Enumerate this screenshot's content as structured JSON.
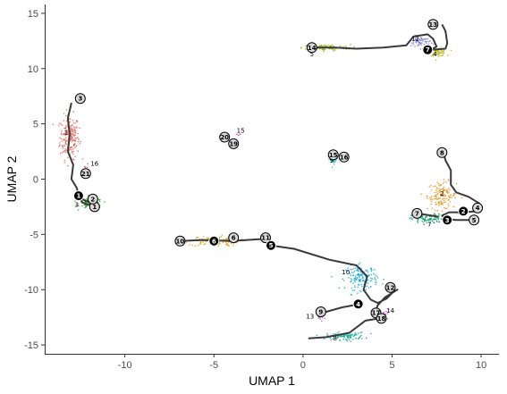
{
  "chart_data": {
    "type": "scatter",
    "xlabel": "UMAP 1",
    "ylabel": "UMAP 2",
    "xlim": [
      -14.5,
      11
    ],
    "ylim": [
      -15.8,
      15.8
    ],
    "x_ticks": [
      -10,
      -5,
      0,
      5,
      10
    ],
    "y_ticks": [
      -15,
      -10,
      -5,
      0,
      5,
      10,
      15
    ],
    "grid": false,
    "legend": "none",
    "clusters": [
      {
        "label": "1",
        "x": -13.1,
        "y": 3.8,
        "color": "#e06a5f",
        "spread": [
          0.6,
          2.2
        ],
        "n": 220
      },
      {
        "label": "2",
        "x": 7.8,
        "y": -1.5,
        "color": "#e68f1a",
        "spread": [
          0.9,
          1.4
        ],
        "n": 140
      },
      {
        "label": "3",
        "x": -11.9,
        "y": -2.2,
        "color": "#2eab2e",
        "spread": [
          0.7,
          0.5
        ],
        "n": 120
      },
      {
        "label": "4",
        "x": 7.6,
        "y": 11.5,
        "color": "#b8b814",
        "spread": [
          0.5,
          0.4
        ],
        "n": 70
      },
      {
        "label": "5",
        "x": 1.3,
        "y": 11.9,
        "color": "#8fb01a",
        "spread": [
          1.5,
          0.3
        ],
        "n": 110
      },
      {
        "label": "6",
        "x": -5.0,
        "y": -5.6,
        "color": "#d6a61f",
        "spread": [
          1.6,
          0.5
        ],
        "n": 130
      },
      {
        "label": "7",
        "x": 7.0,
        "y": -3.6,
        "color": "#1aa36f",
        "spread": [
          1.0,
          0.5
        ],
        "n": 100
      },
      {
        "label": "8",
        "x": 2.4,
        "y": -14.2,
        "color": "#18a89a",
        "spread": [
          1.2,
          0.4
        ],
        "n": 100
      },
      {
        "label": "9",
        "x": 1.7,
        "y": 1.8,
        "color": "#1fb3b3",
        "spread": [
          0.3,
          0.5
        ],
        "n": 30
      },
      {
        "label": "10",
        "x": 3.3,
        "y": -8.9,
        "color": "#1fa8d6",
        "spread": [
          1.0,
          1.2
        ],
        "n": 160
      },
      {
        "label": "12",
        "x": 6.6,
        "y": 12.4,
        "color": "#7a7ad6",
        "spread": [
          0.6,
          0.6
        ],
        "n": 60
      },
      {
        "label": "13",
        "x": 1.0,
        "y": -12.4,
        "color": "#a970db",
        "spread": [
          0.3,
          0.4
        ],
        "n": 25
      },
      {
        "label": "14",
        "x": 4.6,
        "y": -12.2,
        "color": "#d65ad1",
        "spread": [
          0.3,
          0.4
        ],
        "n": 20
      },
      {
        "label": "15",
        "x": -3.6,
        "y": 4.0,
        "color": "#e05aa0",
        "spread": [
          0.2,
          0.2
        ],
        "n": 6
      },
      {
        "label": "16",
        "x": -12.2,
        "y": 1.0,
        "color": "#e0574f",
        "spread": [
          0.3,
          0.3
        ],
        "n": 8
      }
    ],
    "cluster_label_positions": [
      {
        "label": "1",
        "x": -13.3,
        "y": 4.0
      },
      {
        "label": "2",
        "x": 7.8,
        "y": -1.5
      },
      {
        "label": "3",
        "x": -12.7,
        "y": -2.5
      },
      {
        "label": "4",
        "x": 7.4,
        "y": 11.1
      },
      {
        "label": "5",
        "x": 0.5,
        "y": 11.1
      },
      {
        "label": "6",
        "x": -5.0,
        "y": -6.1
      },
      {
        "label": "7",
        "x": 7.1,
        "y": -4.3
      },
      {
        "label": "8",
        "x": 1.8,
        "y": -14.6
      },
      {
        "label": "9",
        "x": 1.6,
        "y": 1.5
      },
      {
        "label": "10",
        "x": 2.4,
        "y": -8.6
      },
      {
        "label": "12",
        "x": 6.3,
        "y": 12.5
      },
      {
        "label": "13",
        "x": 0.4,
        "y": -12.6
      },
      {
        "label": "14",
        "x": 4.9,
        "y": -12.1
      },
      {
        "label": "15",
        "x": -3.5,
        "y": 4.2
      },
      {
        "label": "16",
        "x": -11.7,
        "y": 1.2
      }
    ],
    "trajectory_paths": [
      [
        [
          -13.0,
          6.9
        ],
        [
          -13.2,
          5.5
        ],
        [
          -13.1,
          4.0
        ],
        [
          -13.2,
          2.5
        ],
        [
          -12.9,
          1.3
        ],
        [
          -13.0,
          0.0
        ],
        [
          -12.7,
          -0.8
        ],
        [
          -12.6,
          -1.5
        ],
        [
          -12.4,
          -2.1
        ],
        [
          -12.1,
          -2.3
        ],
        [
          -11.7,
          -2.4
        ],
        [
          -11.4,
          -2.6
        ]
      ],
      [
        [
          -12.6,
          -1.5
        ],
        [
          -12.2,
          -2.0
        ],
        [
          -11.8,
          -2.0
        ]
      ],
      [
        [
          -6.9,
          -5.6
        ],
        [
          -5.6,
          -5.5
        ],
        [
          -4.0,
          -5.6
        ],
        [
          -2.1,
          -5.4
        ],
        [
          -1.8,
          -6.0
        ],
        [
          -0.5,
          -6.3
        ],
        [
          1.5,
          -7.3
        ],
        [
          3.0,
          -7.8
        ],
        [
          3.6,
          -8.8
        ],
        [
          3.4,
          -10.0
        ],
        [
          3.8,
          -10.9
        ],
        [
          4.2,
          -11.2
        ],
        [
          4.7,
          -10.8
        ],
        [
          5.0,
          -10.3
        ],
        [
          5.3,
          -10.0
        ],
        [
          4.6,
          -10.7
        ],
        [
          4.2,
          -11.4
        ],
        [
          4.0,
          -12.3
        ],
        [
          4.3,
          -12.6
        ],
        [
          3.5,
          -12.8
        ],
        [
          2.6,
          -13.9
        ],
        [
          1.3,
          -14.3
        ],
        [
          0.3,
          -14.4
        ]
      ],
      [
        [
          3.2,
          -11.3
        ],
        [
          2.2,
          -11.6
        ],
        [
          1.3,
          -12.0
        ],
        [
          1.0,
          -12.0
        ]
      ],
      [
        [
          0.5,
          11.9
        ],
        [
          1.8,
          11.9
        ],
        [
          3.0,
          11.8
        ],
        [
          4.5,
          11.9
        ],
        [
          5.8,
          12.1
        ],
        [
          6.2,
          12.9
        ],
        [
          7.0,
          13.1
        ],
        [
          7.3,
          12.7
        ],
        [
          7.5,
          12.0
        ],
        [
          7.2,
          11.7
        ]
      ],
      [
        [
          7.8,
          14.0
        ],
        [
          8.0,
          13.4
        ],
        [
          8.1,
          12.3
        ],
        [
          8.0,
          11.8
        ],
        [
          7.2,
          11.7
        ]
      ],
      [
        [
          7.9,
          2.4
        ],
        [
          8.0,
          1.7
        ],
        [
          8.3,
          0.8
        ],
        [
          8.3,
          -0.5
        ],
        [
          8.6,
          -1.2
        ],
        [
          9.3,
          -1.6
        ],
        [
          9.9,
          -2.2
        ],
        [
          9.8,
          -2.9
        ],
        [
          9.0,
          -3.0
        ],
        [
          8.2,
          -3.0
        ],
        [
          7.8,
          -3.3
        ],
        [
          8.0,
          -3.6
        ],
        [
          8.6,
          -3.7
        ],
        [
          9.5,
          -3.7
        ]
      ],
      [
        [
          6.4,
          -3.1
        ],
        [
          7.2,
          -3.3
        ],
        [
          7.6,
          -3.4
        ]
      ]
    ],
    "milestone_nodes": [
      {
        "label": "1",
        "x": -11.7,
        "y": -2.5,
        "kind": "open"
      },
      {
        "label": "2",
        "x": -11.8,
        "y": -1.8,
        "kind": "open"
      },
      {
        "label": "3",
        "x": -12.5,
        "y": 7.3,
        "kind": "open"
      },
      {
        "label": "4",
        "x": 9.8,
        "y": -2.6,
        "kind": "open"
      },
      {
        "label": "5",
        "x": 9.6,
        "y": -3.7,
        "kind": "open"
      },
      {
        "label": "6",
        "x": -3.9,
        "y": -5.3,
        "kind": "open"
      },
      {
        "label": "7",
        "x": 6.4,
        "y": -3.1,
        "kind": "open"
      },
      {
        "label": "8",
        "x": 7.8,
        "y": 2.4,
        "kind": "open"
      },
      {
        "label": "9",
        "x": 1.0,
        "y": -12.0,
        "kind": "open"
      },
      {
        "label": "10",
        "x": -6.9,
        "y": -5.6,
        "kind": "open"
      },
      {
        "label": "11",
        "x": -2.1,
        "y": -5.3,
        "kind": "open"
      },
      {
        "label": "12",
        "x": 4.9,
        "y": -9.8,
        "kind": "open"
      },
      {
        "label": "13",
        "x": 7.3,
        "y": 14.0,
        "kind": "open"
      },
      {
        "label": "14",
        "x": 0.5,
        "y": 11.9,
        "kind": "open"
      },
      {
        "label": "15",
        "x": 1.7,
        "y": 2.2,
        "kind": "open"
      },
      {
        "label": "16",
        "x": 2.3,
        "y": 2.0,
        "kind": "open"
      },
      {
        "label": "17",
        "x": 4.1,
        "y": -12.1,
        "kind": "open"
      },
      {
        "label": "18",
        "x": 4.4,
        "y": -12.6,
        "kind": "open"
      },
      {
        "label": "19",
        "x": -3.9,
        "y": 3.2,
        "kind": "open"
      },
      {
        "label": "20",
        "x": -4.4,
        "y": 3.8,
        "kind": "open"
      },
      {
        "label": "21",
        "x": -12.2,
        "y": 0.5,
        "kind": "open"
      },
      {
        "label": "1",
        "x": -12.6,
        "y": -1.5,
        "kind": "filled"
      },
      {
        "label": "2",
        "x": 9.0,
        "y": -2.9,
        "kind": "filled"
      },
      {
        "label": "3",
        "x": 8.1,
        "y": -3.7,
        "kind": "filled"
      },
      {
        "label": "4",
        "x": 3.1,
        "y": -11.3,
        "kind": "filled"
      },
      {
        "label": "5",
        "x": -1.8,
        "y": -6.0,
        "kind": "filled"
      },
      {
        "label": "6",
        "x": -5.0,
        "y": -5.6,
        "kind": "filled"
      },
      {
        "label": "7",
        "x": 7.0,
        "y": 11.7,
        "kind": "filled"
      }
    ]
  }
}
